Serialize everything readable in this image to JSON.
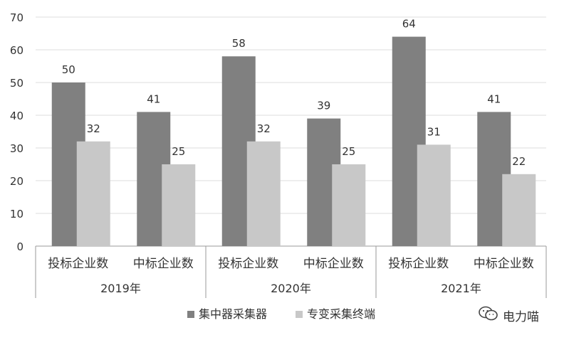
{
  "chart_data": {
    "type": "bar",
    "title": "",
    "xlabel": "",
    "ylabel": "",
    "ylim": [
      0,
      70
    ],
    "y_ticks": [
      0,
      10,
      20,
      30,
      40,
      50,
      60,
      70
    ],
    "grid": true,
    "legend_position": "bottom",
    "groups": [
      {
        "label": "2019年",
        "categories": [
          "投标企业数",
          "中标企业数"
        ]
      },
      {
        "label": "2020年",
        "categories": [
          "投标企业数",
          "中标企业数"
        ]
      },
      {
        "label": "2021年",
        "categories": [
          "投标企业数",
          "中标企业数"
        ]
      }
    ],
    "categories": [
      "投标企业数",
      "中标企业数",
      "投标企业数",
      "中标企业数",
      "投标企业数",
      "中标企业数"
    ],
    "series": [
      {
        "name": "集中器采集器",
        "color": "#808080",
        "values": [
          50,
          41,
          58,
          39,
          64,
          41
        ]
      },
      {
        "name": "专变采集终端",
        "color": "#c8c8c8",
        "values": [
          32,
          25,
          32,
          25,
          31,
          22
        ]
      }
    ]
  },
  "watermark": {
    "text": "电力喵",
    "icon": "wechat-icon"
  }
}
